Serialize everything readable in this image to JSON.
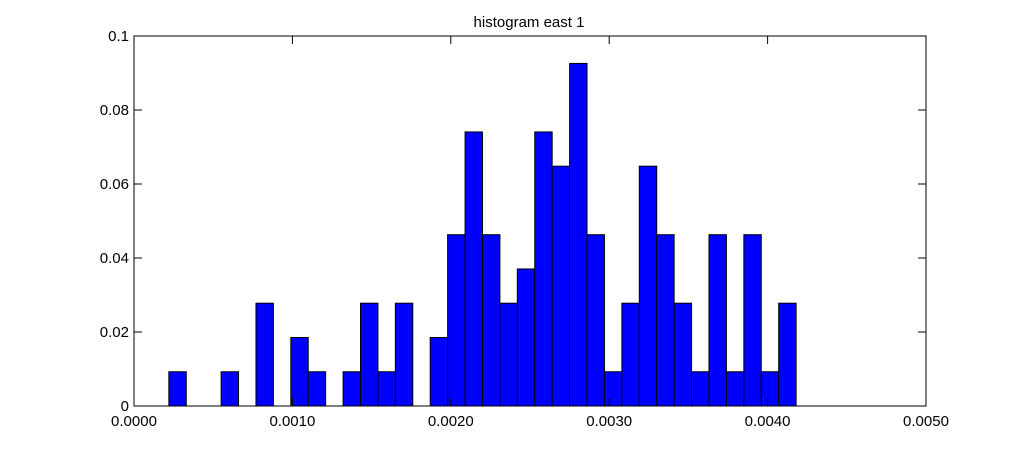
{
  "chart_data": {
    "type": "bar",
    "title": "histogram east 1",
    "xlabel": "",
    "ylabel": "",
    "xlim": [
      0,
      0.005
    ],
    "ylim": [
      0,
      0.1
    ],
    "xticks": [
      "0.0000",
      "0.0010",
      "0.0020",
      "0.0030",
      "0.0040",
      "0.0050"
    ],
    "yticks": [
      "0",
      "0.02",
      "0.04",
      "0.06",
      "0.08",
      "0.1"
    ],
    "grid": false,
    "bar_color": "#0000ff",
    "bin_width": 0.00011,
    "bins": [
      {
        "x": 0.00022,
        "y": 0.00926
      },
      {
        "x": 0.00055,
        "y": 0.00926
      },
      {
        "x": 0.00077,
        "y": 0.02778
      },
      {
        "x": 0.00099,
        "y": 0.01852
      },
      {
        "x": 0.0011,
        "y": 0.00926
      },
      {
        "x": 0.00132,
        "y": 0.00926
      },
      {
        "x": 0.00143,
        "y": 0.02778
      },
      {
        "x": 0.00154,
        "y": 0.00926
      },
      {
        "x": 0.00165,
        "y": 0.02778
      },
      {
        "x": 0.00187,
        "y": 0.01852
      },
      {
        "x": 0.00198,
        "y": 0.0463
      },
      {
        "x": 0.00209,
        "y": 0.07407
      },
      {
        "x": 0.0022,
        "y": 0.0463
      },
      {
        "x": 0.00231,
        "y": 0.02778
      },
      {
        "x": 0.00242,
        "y": 0.03704
      },
      {
        "x": 0.00253,
        "y": 0.07407
      },
      {
        "x": 0.00264,
        "y": 0.06481
      },
      {
        "x": 0.00275,
        "y": 0.09259
      },
      {
        "x": 0.00286,
        "y": 0.0463
      },
      {
        "x": 0.00297,
        "y": 0.00926
      },
      {
        "x": 0.00308,
        "y": 0.02778
      },
      {
        "x": 0.00319,
        "y": 0.06481
      },
      {
        "x": 0.0033,
        "y": 0.0463
      },
      {
        "x": 0.00341,
        "y": 0.02778
      },
      {
        "x": 0.00352,
        "y": 0.00926
      },
      {
        "x": 0.00363,
        "y": 0.0463
      },
      {
        "x": 0.00374,
        "y": 0.00926
      },
      {
        "x": 0.00385,
        "y": 0.0463
      },
      {
        "x": 0.00396,
        "y": 0.00926
      },
      {
        "x": 0.00407,
        "y": 0.02778
      }
    ]
  }
}
